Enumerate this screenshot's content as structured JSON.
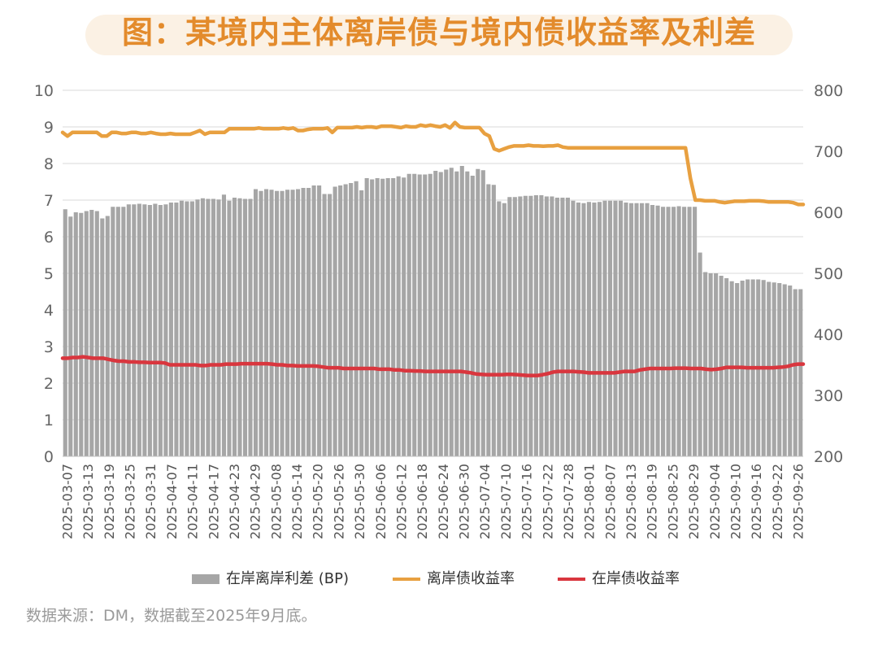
{
  "title": "图：某境内主体离岸债与境内债收益率及利差",
  "source": "数据来源：DM，数据截至2025年9月底。",
  "colors": {
    "spread": "#a6a6a6",
    "offshore": "#e8a040",
    "onshore": "#d9363e",
    "title": "#e38b2c"
  },
  "legend": {
    "spread": "在岸离岸利差 (BP)",
    "offshore": "离岸债收益率",
    "onshore": "在岸债收益率"
  },
  "chart_data": {
    "type": "bar+line",
    "x_tick_labels": [
      "2025-03-07",
      "2025-03-13",
      "2025-03-19",
      "2025-03-25",
      "2025-03-31",
      "2025-04-07",
      "2025-04-11",
      "2025-04-17",
      "2025-04-23",
      "2025-04-29",
      "2025-05-08",
      "2025-05-14",
      "2025-05-20",
      "2025-05-26",
      "2025-05-30",
      "2025-06-06",
      "2025-06-12",
      "2025-06-18",
      "2025-06-24",
      "2025-06-30",
      "2025-07-04",
      "2025-07-10",
      "2025-07-16",
      "2025-07-22",
      "2025-07-28",
      "2025-08-01",
      "2025-08-07",
      "2025-08-13",
      "2025-08-19",
      "2025-08-25",
      "2025-08-29",
      "2025-09-04",
      "2025-09-10",
      "2025-09-16",
      "2025-09-22",
      "2025-09-26"
    ],
    "y_left": {
      "min": 0,
      "max": 10,
      "ticks": [
        "0",
        "1",
        "2",
        "3",
        "4",
        "5",
        "6",
        "7",
        "8",
        "9",
        "10"
      ]
    },
    "y_right": {
      "min": 200,
      "max": 800,
      "ticks": [
        "200",
        "300",
        "400",
        "500",
        "600",
        "700",
        "800"
      ]
    },
    "series": [
      {
        "name": "在岸离岸利差 (BP)",
        "type": "bar",
        "axis": "right",
        "values": [
          605,
          593,
          600,
          599,
          602,
          604,
          602,
          590,
          594,
          609,
          609,
          609,
          613,
          613,
          614,
          613,
          612,
          614,
          612,
          613,
          616,
          616,
          619,
          618,
          618,
          621,
          623,
          622,
          622,
          621,
          629,
          619,
          624,
          623,
          622,
          622,
          638,
          635,
          638,
          637,
          635,
          635,
          637,
          637,
          638,
          640,
          640,
          644,
          644,
          630,
          630,
          642,
          644,
          646,
          648,
          651,
          636,
          656,
          654,
          656,
          655,
          656,
          656,
          659,
          657,
          663,
          663,
          662,
          662,
          663,
          668,
          666,
          670,
          673,
          667,
          676,
          667,
          660,
          671,
          669,
          646,
          645,
          618,
          615,
          625,
          625,
          626,
          627,
          627,
          628,
          628,
          626,
          626,
          624,
          624,
          624,
          619,
          616,
          615,
          617,
          616,
          617,
          619,
          619,
          619,
          619,
          616,
          615,
          615,
          615,
          615,
          612,
          611,
          609,
          609,
          609,
          610,
          609,
          609,
          609,
          534,
          502,
          500,
          500,
          496,
          492,
          487,
          484,
          488,
          490,
          490,
          490,
          489,
          486,
          485,
          484,
          482,
          480,
          474,
          474
        ]
      },
      {
        "name": "离岸债收益率",
        "type": "line",
        "axis": "left",
        "values": [
          8.85,
          8.75,
          8.85,
          8.85,
          8.85,
          8.85,
          8.85,
          8.85,
          8.75,
          8.75,
          8.85,
          8.85,
          8.82,
          8.82,
          8.85,
          8.85,
          8.82,
          8.82,
          8.85,
          8.82,
          8.8,
          8.8,
          8.82,
          8.8,
          8.8,
          8.8,
          8.8,
          8.85,
          8.9,
          8.8,
          8.85,
          8.85,
          8.85,
          8.85,
          8.95,
          8.95,
          8.95,
          8.95,
          8.95,
          8.95,
          8.97,
          8.95,
          8.95,
          8.95,
          8.95,
          8.97,
          8.95,
          8.97,
          8.9,
          8.9,
          8.93,
          8.95,
          8.95,
          8.95,
          8.97,
          8.85,
          8.98,
          8.98,
          8.98,
          8.98,
          9.0,
          8.98,
          9.0,
          9.0,
          8.98,
          9.02,
          9.02,
          9.02,
          9.0,
          8.98,
          9.02,
          9.0,
          9.0,
          9.05,
          9.02,
          9.05,
          9.02,
          9.0,
          9.05,
          8.97,
          9.12,
          9.0,
          8.98,
          8.98,
          8.98,
          8.98,
          8.82,
          8.75,
          8.4,
          8.35,
          8.4,
          8.45,
          8.48,
          8.48,
          8.48,
          8.5,
          8.48,
          8.48,
          8.47,
          8.48,
          8.48,
          8.5,
          8.45,
          8.43,
          8.43,
          8.43,
          8.43,
          8.43,
          8.43,
          8.43,
          8.43,
          8.43,
          8.43,
          8.43,
          8.43,
          8.43,
          8.43,
          8.43,
          8.43,
          8.43,
          8.43,
          8.43,
          8.43,
          8.43,
          8.43,
          8.43,
          8.43,
          8.43,
          7.6,
          7.0,
          7.0,
          6.98,
          6.98,
          6.98,
          6.95,
          6.93,
          6.95,
          6.97,
          6.97,
          6.97,
          6.98,
          6.98,
          6.98,
          6.97,
          6.95,
          6.95,
          6.95,
          6.95,
          6.95,
          6.93,
          6.88,
          6.88
        ]
      },
      {
        "name": "在岸债收益率",
        "type": "line",
        "axis": "left",
        "values": [
          2.68,
          2.68,
          2.7,
          2.7,
          2.72,
          2.7,
          2.68,
          2.68,
          2.68,
          2.65,
          2.62,
          2.6,
          2.6,
          2.58,
          2.58,
          2.57,
          2.57,
          2.56,
          2.56,
          2.56,
          2.55,
          2.5,
          2.5,
          2.5,
          2.5,
          2.5,
          2.5,
          2.48,
          2.48,
          2.5,
          2.5,
          2.5,
          2.52,
          2.52,
          2.52,
          2.53,
          2.53,
          2.53,
          2.53,
          2.53,
          2.53,
          2.52,
          2.5,
          2.5,
          2.48,
          2.48,
          2.47,
          2.47,
          2.47,
          2.47,
          2.46,
          2.44,
          2.42,
          2.42,
          2.42,
          2.4,
          2.4,
          2.4,
          2.4,
          2.4,
          2.4,
          2.4,
          2.38,
          2.38,
          2.38,
          2.36,
          2.36,
          2.34,
          2.34,
          2.33,
          2.33,
          2.32,
          2.32,
          2.32,
          2.32,
          2.32,
          2.32,
          2.32,
          2.32,
          2.3,
          2.28,
          2.25,
          2.24,
          2.23,
          2.23,
          2.23,
          2.23,
          2.24,
          2.24,
          2.23,
          2.22,
          2.21,
          2.21,
          2.21,
          2.23,
          2.26,
          2.3,
          2.32,
          2.32,
          2.32,
          2.32,
          2.31,
          2.3,
          2.28,
          2.28,
          2.28,
          2.28,
          2.28,
          2.28,
          2.3,
          2.32,
          2.32,
          2.32,
          2.36,
          2.38,
          2.4,
          2.4,
          2.4,
          2.4,
          2.4,
          2.41,
          2.41,
          2.41,
          2.4,
          2.4,
          2.4,
          2.38,
          2.37,
          2.38,
          2.4,
          2.43,
          2.43,
          2.43,
          2.43,
          2.42,
          2.42,
          2.42,
          2.42,
          2.42,
          2.42,
          2.43,
          2.44,
          2.46,
          2.5,
          2.52,
          2.52
        ]
      }
    ],
    "grid": "horizontal",
    "legend_position": "bottom"
  }
}
